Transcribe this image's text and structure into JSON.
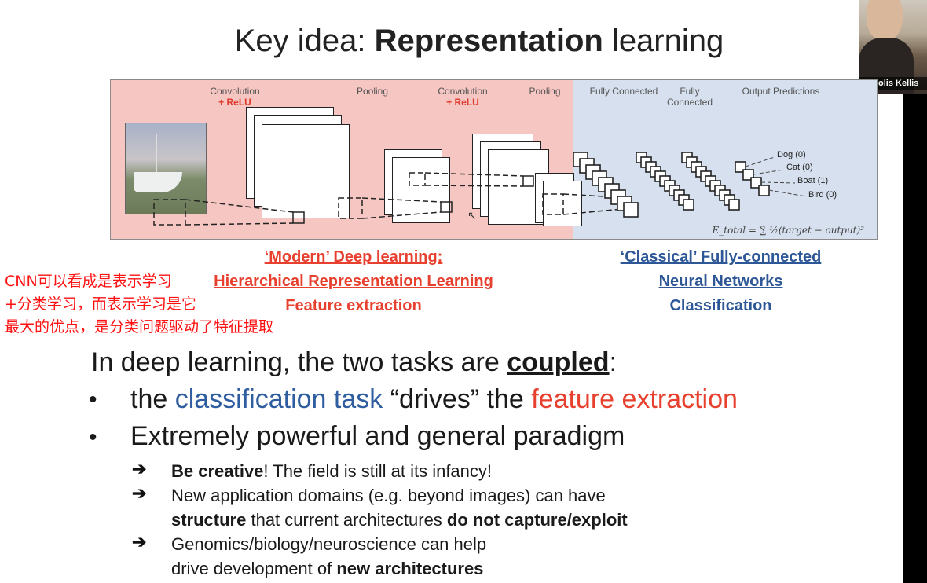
{
  "slide": {
    "title_prefix": "Key idea: ",
    "title_bold": "Representation",
    "title_suffix": " learning"
  },
  "diagram": {
    "labels": [
      {
        "text": "Convolution",
        "sub": "+ ReLU"
      },
      {
        "text": "Pooling",
        "sub": ""
      },
      {
        "text": "Convolution",
        "sub": "+ ReLU"
      },
      {
        "text": "Pooling",
        "sub": ""
      },
      {
        "text": "Fully Connected",
        "sub": ""
      },
      {
        "text": "Fully Connected",
        "sub": ""
      },
      {
        "text": "Output Predictions",
        "sub": ""
      }
    ],
    "outputs": [
      "Dog (0)",
      "Cat (0)",
      "Boat (1)",
      "Bird (0)"
    ],
    "formula": "E_total = ∑ ½(target − output)²",
    "colors": {
      "modern": "#f6c6c2",
      "classical": "#d6e0ee"
    }
  },
  "captions": {
    "modern": [
      "‘Modern’ Deep learning:",
      "Hierarchical Representation Learning",
      "Feature extraction"
    ],
    "classical": [
      "‘Classical’ Fully-connected",
      "Neural Networks",
      "Classification"
    ]
  },
  "annotation": {
    "lines": [
      "CNN可以看成是表示学习",
      "+分类学习，而表示学习是它",
      "最大的优点，是分类问题驱动了特征提取"
    ],
    "color": "#ff1111"
  },
  "body": {
    "line1_prefix": "In deep learning, the two tasks are ",
    "line1_bold": "coupled",
    "line1_suffix": ":",
    "bullet_marker": "•",
    "bullet1": {
      "pre": "the ",
      "blue": "classification task",
      "mid": " “drives” the ",
      "red": "feature extraction"
    },
    "bullet2": "Extremely powerful and general paradigm",
    "arrow": "➔",
    "sub1": {
      "bold": "Be creative",
      "rest": "! The field is still at its infancy!"
    },
    "sub2": {
      "line_a": "New application domains (e.g. beyond images) can have",
      "bold1": "structure",
      "mid": " that current architectures ",
      "bold2": "do not capture/exploit"
    },
    "sub3": {
      "line_a": "Genomics/biology/neuroscience can help",
      "pre": "drive development of ",
      "bold": "new architectures"
    }
  },
  "webcam": {
    "name": "Manolis Kellis"
  }
}
